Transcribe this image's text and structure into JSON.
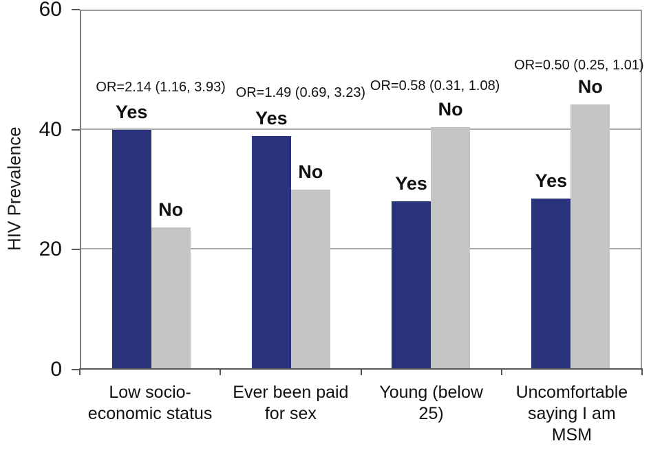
{
  "chart_data": {
    "type": "bar",
    "title": "",
    "ylabel": "HIV Prevalence",
    "xlabel": "",
    "ylim": [
      0,
      60
    ],
    "yticks": [
      0,
      20,
      40,
      60
    ],
    "grid": "horizontal",
    "legend": "none (bars labeled directly)",
    "categories": [
      "Low socio-\neconomic status",
      "Ever been paid\nfor sex",
      "Young (below\n25)",
      "Uncomfortable\nsaying I am\nMSM"
    ],
    "series": [
      {
        "name": "Yes",
        "color": "#2A337B",
        "values": [
          40,
          39,
          28,
          28.5
        ]
      },
      {
        "name": "No",
        "color": "#C5C5C5",
        "values": [
          23.7,
          30,
          40.5,
          44.3
        ]
      }
    ],
    "annotations": [
      "OR=2.14 (1.16, 3.93)",
      "OR=1.49 (0.69, 3.23)",
      "OR=0.58 (0.31, 1.08)",
      "OR=0.50 (0.25, 1.01)"
    ]
  }
}
